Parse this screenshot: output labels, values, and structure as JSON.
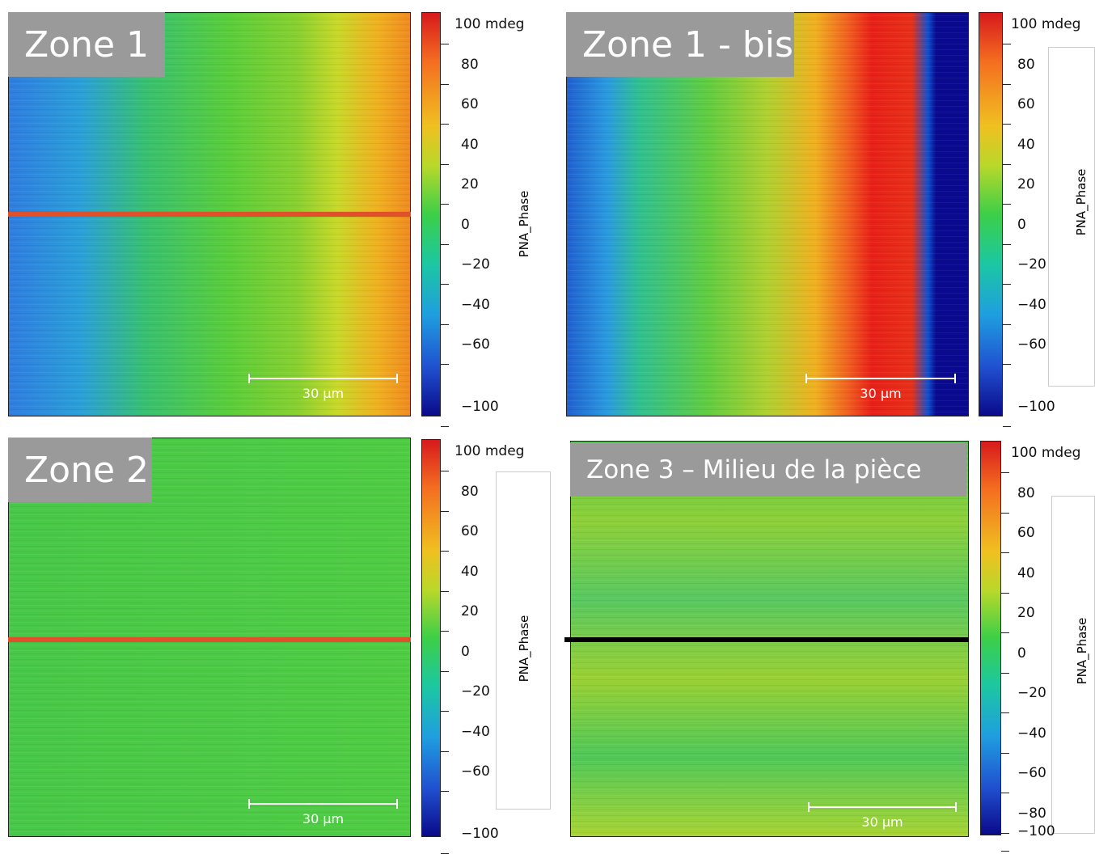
{
  "panels": [
    {
      "label": "Zone 1",
      "scale_bar": "30 µm",
      "colorbar": {
        "title": "PNA_Phase",
        "ticks": [
          "100 mdeg",
          "80",
          "60",
          "40",
          "20",
          "0",
          "−20",
          "−40",
          "−60",
          "−100"
        ]
      }
    },
    {
      "label": "Zone 1 - bis",
      "scale_bar": "30 µm",
      "colorbar": {
        "title": "PNA_Phase",
        "ticks": [
          "100 mdeg",
          "80",
          "60",
          "40",
          "20",
          "0",
          "−20",
          "−40",
          "−60",
          "−100"
        ]
      }
    },
    {
      "label": "Zone 2",
      "scale_bar": "30 µm",
      "colorbar": {
        "title": "PNA_Phase",
        "ticks": [
          "100 mdeg",
          "80",
          "60",
          "40",
          "20",
          "0",
          "−20",
          "−40",
          "−60",
          "−100"
        ]
      }
    },
    {
      "label": "Zone 3 – Milieu de la pièce",
      "scale_bar": "30 µm",
      "colorbar": {
        "title": "PNA_Phase",
        "ticks": [
          "100 mdeg",
          "80",
          "60",
          "40",
          "20",
          "0",
          "−20",
          "−40",
          "−60",
          "−80",
          "−100"
        ]
      }
    }
  ]
}
